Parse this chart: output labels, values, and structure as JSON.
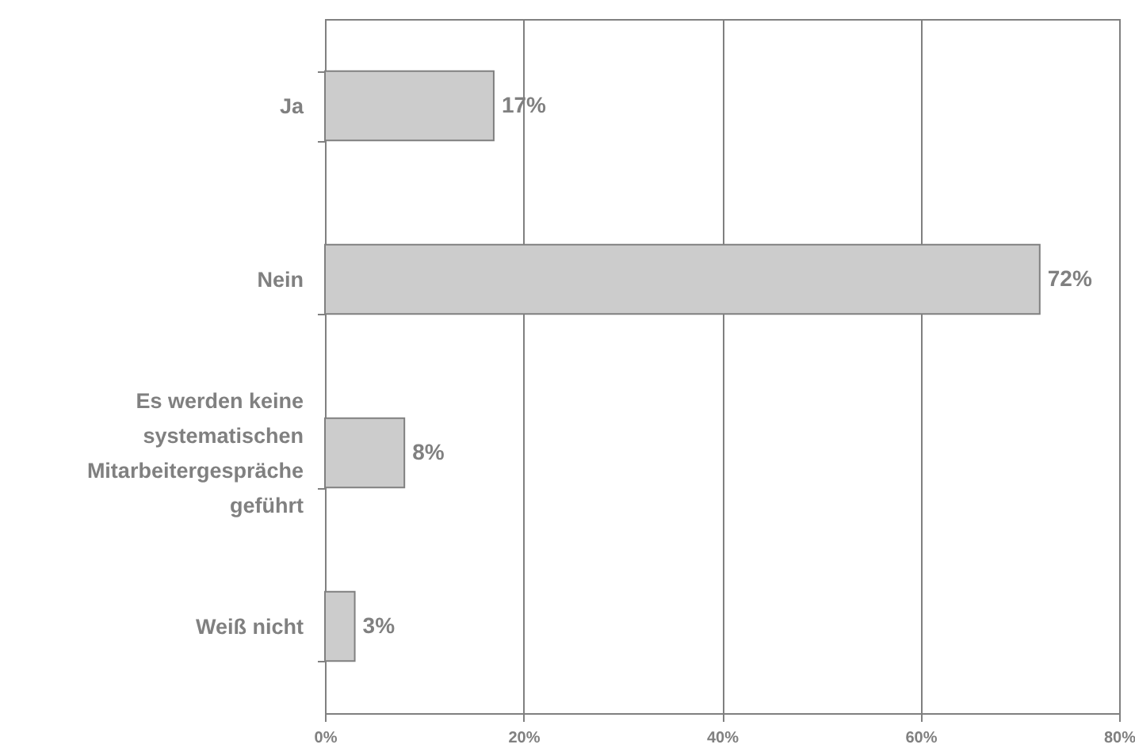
{
  "chart_data": {
    "type": "bar",
    "orientation": "horizontal",
    "categories": [
      "Ja",
      "Nein",
      "Es werden keine systematischen Mitarbeitergespräche geführt",
      "Weiß nicht"
    ],
    "values": [
      17,
      72,
      8,
      3
    ],
    "color": "#cccccc",
    "value_labels": [
      "17%",
      "72%",
      "8%",
      "3%"
    ],
    "xlim": [
      0,
      80
    ],
    "xticks": [
      {
        "value": 0,
        "label": "0%"
      },
      {
        "value": 20,
        "label": "20%"
      },
      {
        "value": 40,
        "label": "40%"
      },
      {
        "value": 60,
        "label": "60%"
      },
      {
        "value": 80,
        "label": "80%"
      }
    ],
    "grid": "x"
  }
}
